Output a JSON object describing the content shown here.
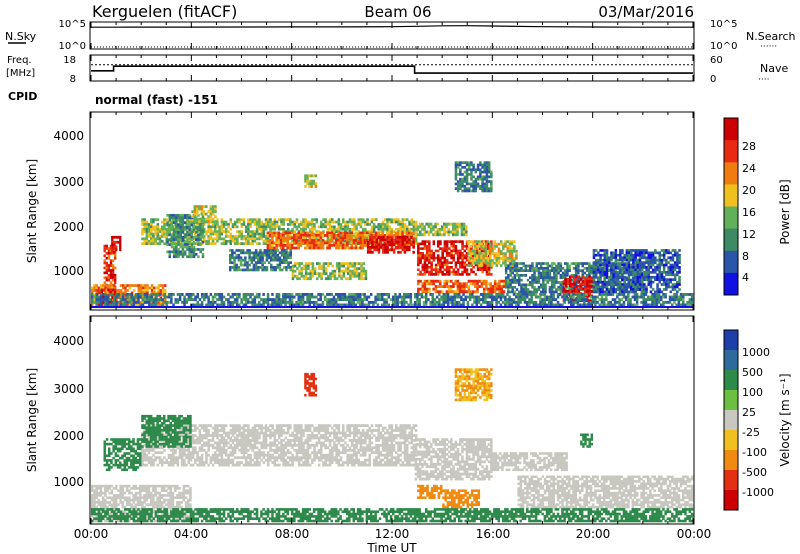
{
  "header": {
    "station": "Kerguelen (fitACF)",
    "beam": "Beam 06",
    "date": "03/Mar/2016"
  },
  "noise_panel": {
    "left_label": "N.Sky",
    "right_label": "N.Search",
    "right_line_marker": "······",
    "left_ticks": [
      "10^5",
      "10^0"
    ],
    "right_ticks": [
      "10^5",
      "10^0"
    ]
  },
  "freq_panel": {
    "left_label_line1": "Freq.",
    "left_label_line2": "[MHz]",
    "right_label": "Nave",
    "right_line_marker": "····",
    "left_ticks": [
      "18",
      "8"
    ],
    "right_ticks": [
      "60",
      "0"
    ]
  },
  "cpid": {
    "label": "CPID",
    "value": "normal (fast) -151"
  },
  "power_panel": {
    "ylabel": "Slant Range [km]",
    "yticks": [
      "4000",
      "3000",
      "2000",
      "1000"
    ],
    "colorbar_label": "Power [dB]",
    "colorbar_ticks": [
      "28",
      "24",
      "20",
      "16",
      "12",
      "8",
      "4"
    ]
  },
  "velocity_panel": {
    "ylabel": "Slant Range [km]",
    "yticks": [
      "4000",
      "3000",
      "2000",
      "1000"
    ],
    "colorbar_label": "Velocity [m s⁻¹]",
    "colorbar_ticks": [
      "1000",
      "500",
      "100",
      "25",
      "-25",
      "-100",
      "-500",
      "-1000"
    ]
  },
  "x_axis": {
    "ticks": [
      "00:00",
      "04:00",
      "08:00",
      "12:00",
      "16:00",
      "20:00",
      "00:00"
    ],
    "label": "Time UT"
  },
  "colors": {
    "power_scale": [
      "#1010e0",
      "#2a55a8",
      "#3d8a64",
      "#62b05a",
      "#f0c020",
      "#f07c10",
      "#e82a12",
      "#cc0000"
    ],
    "velocity_scale": [
      "#1f3fa8",
      "#2f6a9c",
      "#2e8a4a",
      "#6cbf40",
      "#c8c8c0",
      "#f0c020",
      "#f08a10",
      "#e23010",
      "#cc0000"
    ]
  },
  "chart_data": [
    {
      "type": "line",
      "title": "N.Sky / N.Search",
      "x_range_hours": [
        0,
        24
      ],
      "y_scale": "log",
      "ylim": [
        1,
        100000
      ],
      "series": [
        {
          "name": "N.Sky",
          "x": [
            0,
            1,
            2,
            4,
            6,
            8,
            10,
            12,
            13,
            14,
            15,
            16,
            18,
            20,
            22,
            24
          ],
          "values": [
            20000,
            20000,
            21000,
            21000,
            22000,
            23000,
            24000,
            26000,
            32000,
            40000,
            42000,
            36000,
            26000,
            22000,
            20000,
            20000
          ]
        },
        {
          "name": "N.Search",
          "x": [
            0,
            24
          ],
          "values": [
            1,
            1
          ]
        }
      ]
    },
    {
      "type": "line",
      "title": "Freq / Nave",
      "x_range_hours": [
        0,
        24
      ],
      "left_ylim_mhz": [
        8,
        18
      ],
      "right_ylim": [
        0,
        60
      ],
      "series": [
        {
          "name": "Freq.",
          "x": [
            0,
            0.9,
            0.9,
            12.9,
            12.9,
            24
          ],
          "values": [
            12,
            12,
            14,
            14,
            11,
            11
          ]
        },
        {
          "name": "Nave",
          "x": [
            0,
            24
          ],
          "values": [
            40,
            40
          ]
        }
      ]
    },
    {
      "type": "heatmap",
      "title": "Power [dB]",
      "x_range_hours": [
        0,
        24
      ],
      "ylim_km": [
        180,
        4600
      ],
      "clim": [
        0,
        30
      ],
      "regions": [
        {
          "t": [
            2.0,
            13.0
          ],
          "r": [
            1600,
            2200
          ],
          "value": 14
        },
        {
          "t": [
            7.0,
            12.9
          ],
          "r": [
            1500,
            1900
          ],
          "value": 22
        },
        {
          "t": [
            11.0,
            12.9
          ],
          "r": [
            1400,
            1800
          ],
          "value": 27
        },
        {
          "t": [
            12.9,
            15.0
          ],
          "r": [
            1800,
            2100
          ],
          "value": 14
        },
        {
          "t": [
            13.0,
            16.0
          ],
          "r": [
            900,
            1700
          ],
          "value": 26
        },
        {
          "t": [
            13.0,
            16.5
          ],
          "r": [
            500,
            800
          ],
          "value": 22
        },
        {
          "t": [
            15.0,
            17.0
          ],
          "r": [
            1100,
            1700
          ],
          "value": 16
        },
        {
          "t": [
            16.5,
            22.0
          ],
          "r": [
            500,
            1200
          ],
          "value": 8
        },
        {
          "t": [
            18.8,
            20.0
          ],
          "r": [
            300,
            900
          ],
          "value": 27
        },
        {
          "t": [
            0.5,
            1.0
          ],
          "r": [
            600,
            1600
          ],
          "value": 24
        },
        {
          "t": [
            0.8,
            1.2
          ],
          "r": [
            1400,
            1800
          ],
          "value": 28
        },
        {
          "t": [
            0.0,
            3.0
          ],
          "r": [
            200,
            700
          ],
          "value": 20
        },
        {
          "t": [
            0.2,
            1.0
          ],
          "r": [
            200,
            600
          ],
          "value": 28
        },
        {
          "t": [
            3.0,
            4.5
          ],
          "r": [
            1300,
            2300
          ],
          "value": 10
        },
        {
          "t": [
            4.0,
            5.0
          ],
          "r": [
            2100,
            2500
          ],
          "value": 16
        },
        {
          "t": [
            5.5,
            8.0
          ],
          "r": [
            1000,
            1500
          ],
          "value": 8
        },
        {
          "t": [
            8.0,
            11.0
          ],
          "r": [
            800,
            1200
          ],
          "value": 14
        },
        {
          "t": [
            14.5,
            16.0
          ],
          "r": [
            2800,
            3500
          ],
          "value": 8
        },
        {
          "t": [
            20.0,
            23.5
          ],
          "r": [
            500,
            1500
          ],
          "value": 6
        },
        {
          "t": [
            0.0,
            24.0
          ],
          "r": [
            200,
            500
          ],
          "value": 8
        },
        {
          "t": [
            8.5,
            9.0
          ],
          "r": [
            2900,
            3200
          ],
          "value": 16
        }
      ]
    },
    {
      "type": "heatmap",
      "title": "Velocity [m s⁻¹]",
      "x_range_hours": [
        0,
        24
      ],
      "ylim_km": [
        180,
        4600
      ],
      "clim": [
        -1000,
        1000
      ],
      "regions": [
        {
          "t": [
            2.0,
            13.0
          ],
          "r": [
            1400,
            2300
          ],
          "value": 0
        },
        {
          "t": [
            12.9,
            16.0
          ],
          "r": [
            1100,
            2000
          ],
          "value": 0
        },
        {
          "t": [
            16.0,
            19.0
          ],
          "r": [
            1300,
            1700
          ],
          "value": 0
        },
        {
          "t": [
            0.0,
            4.0
          ],
          "r": [
            200,
            1000
          ],
          "value": 0
        },
        {
          "t": [
            17.0,
            24.0
          ],
          "r": [
            500,
            1200
          ],
          "value": 0
        },
        {
          "t": [
            0.5,
            2.0
          ],
          "r": [
            1300,
            2000
          ],
          "value": 150
        },
        {
          "t": [
            2.0,
            4.0
          ],
          "r": [
            1800,
            2500
          ],
          "value": 300
        },
        {
          "t": [
            13.0,
            14.0
          ],
          "r": [
            700,
            1000
          ],
          "value": -200
        },
        {
          "t": [
            14.0,
            15.5
          ],
          "r": [
            500,
            900
          ],
          "value": -150
        },
        {
          "t": [
            14.5,
            16.0
          ],
          "r": [
            2800,
            3500
          ],
          "value": -100
        },
        {
          "t": [
            0.0,
            24.0
          ],
          "r": [
            200,
            500
          ],
          "value": 150
        },
        {
          "t": [
            8.5,
            9.0
          ],
          "r": [
            2900,
            3400
          ],
          "value": -800
        },
        {
          "t": [
            19.5,
            20.0
          ],
          "r": [
            1800,
            2100
          ],
          "value": 200
        }
      ]
    }
  ]
}
